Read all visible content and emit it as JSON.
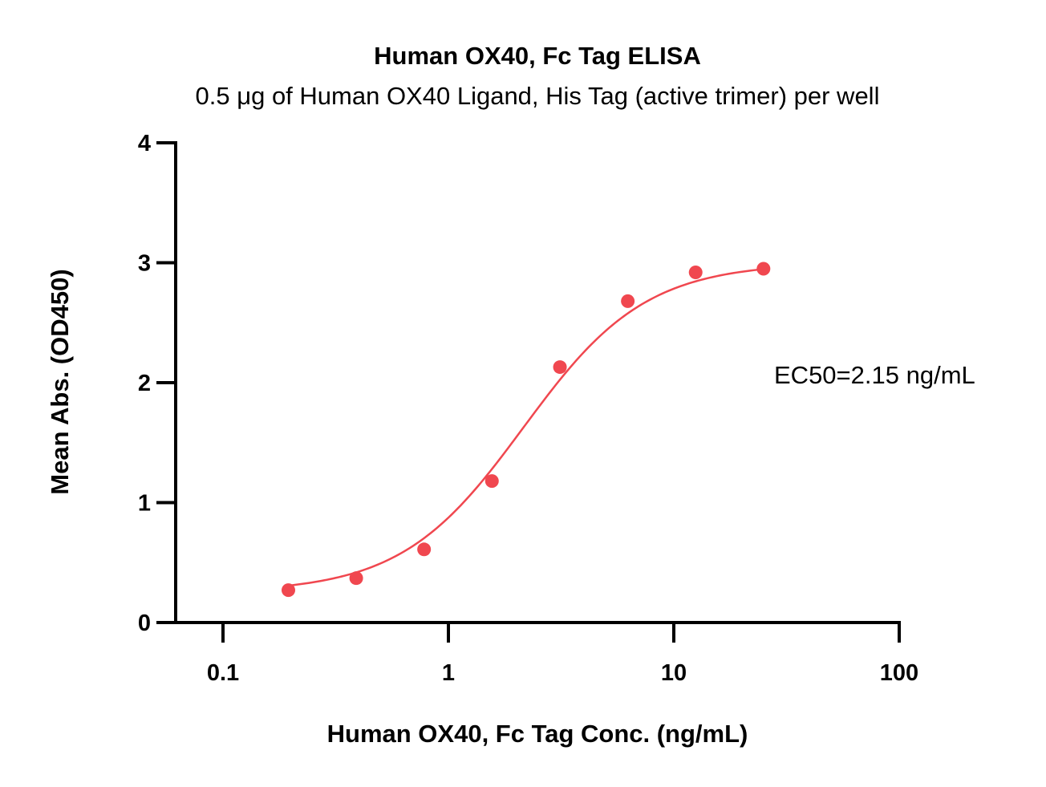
{
  "chart_data": {
    "type": "scatter",
    "title": "Human OX40, Fc Tag ELISA",
    "subtitle": "0.5 μg of Human OX40 Ligand, His Tag (active trimer) per well",
    "xlabel": "Human OX40, Fc Tag Conc. (ng/mL)",
    "ylabel": "Mean Abs. (OD450)",
    "x_scale": "log",
    "xlim": [
      0.065,
      100
    ],
    "ylim": [
      0,
      4
    ],
    "x_ticks": [
      0.1,
      1,
      10,
      100
    ],
    "x_tick_labels": [
      "0.1",
      "1",
      "10",
      "100"
    ],
    "y_ticks": [
      0,
      1,
      2,
      3,
      4
    ],
    "y_tick_labels": [
      "0",
      "1",
      "2",
      "3",
      "4"
    ],
    "grid": false,
    "legend": "none",
    "series": [
      {
        "x": [
          0.195,
          0.39,
          0.78,
          1.56,
          3.125,
          6.25,
          12.5,
          25
        ],
        "y": [
          0.27,
          0.37,
          0.61,
          1.18,
          2.13,
          2.68,
          2.92,
          2.95
        ],
        "color": "#f0474f",
        "fit": "4PL",
        "fit_params": {
          "bottom": 0.25,
          "top": 3.0,
          "ec50": 2.15,
          "hill": 1.6
        }
      }
    ],
    "annotations": [
      {
        "text": "EC50=2.15 ng/mL"
      }
    ]
  }
}
